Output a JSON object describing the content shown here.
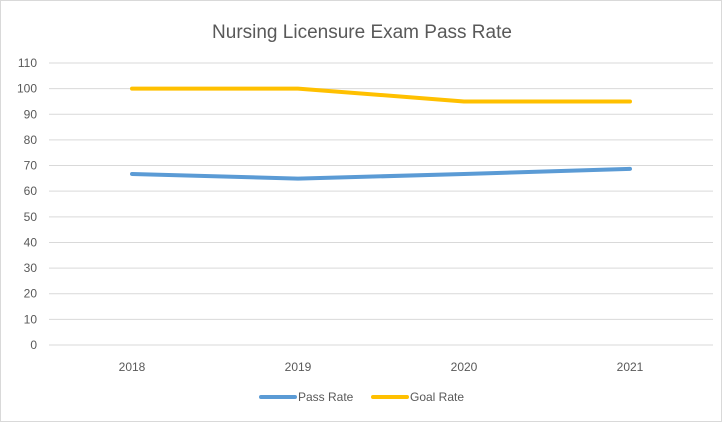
{
  "chart_data": {
    "type": "line",
    "title": "Nursing Licensure Exam Pass Rate",
    "categories": [
      "2018",
      "2019",
      "2020",
      "2021"
    ],
    "ylim": [
      0,
      110
    ],
    "yticks": [
      0,
      10,
      20,
      30,
      40,
      50,
      60,
      70,
      80,
      90,
      100,
      110
    ],
    "grid": true,
    "legend_position": "bottom",
    "series": [
      {
        "name": "Pass Rate",
        "color": "#5b9bd5",
        "values": [
          66.7,
          64.9,
          66.7,
          68.7
        ]
      },
      {
        "name": "Goal Rate",
        "color": "#ffc000",
        "values": [
          100,
          100,
          95,
          95
        ]
      }
    ]
  }
}
